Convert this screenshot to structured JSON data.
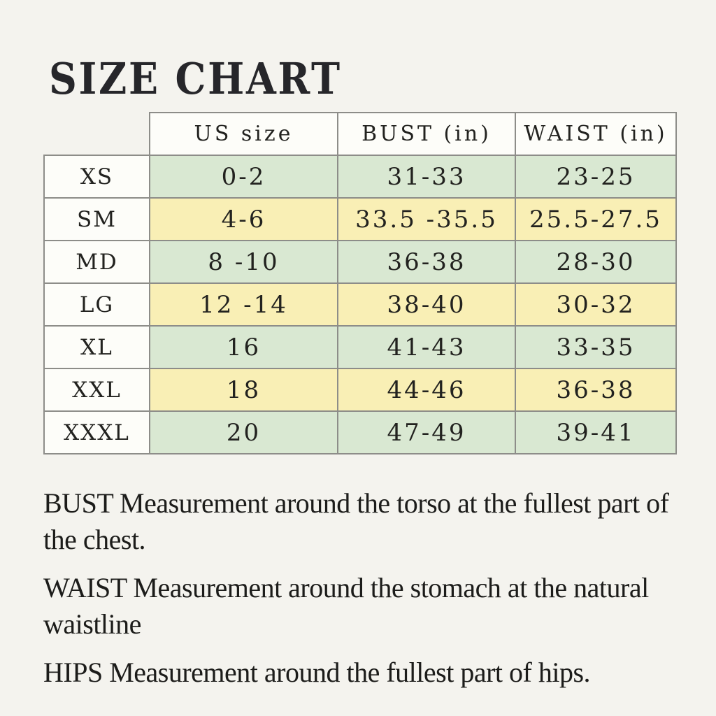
{
  "page": {
    "title": "SIZE CHART"
  },
  "chart_data": {
    "type": "table",
    "title": "SIZE CHART",
    "columns": [
      "US size",
      "BUST (in)",
      "WAIST (in)"
    ],
    "row_labels": [
      "XS",
      "SM",
      "MD",
      "LG",
      "XL",
      "XXL",
      "XXXL"
    ],
    "rows": [
      [
        "0-2",
        "31-33",
        "23-25"
      ],
      [
        "4-6",
        "33.5 -35.5",
        "25.5-27.5"
      ],
      [
        "8 -10",
        "36-38",
        "28-30"
      ],
      [
        "12 -14",
        "38-40",
        "30-32"
      ],
      [
        "16",
        "41-43",
        "33-35"
      ],
      [
        "18",
        "44-46",
        "36-38"
      ],
      [
        "20",
        "47-49",
        "39-41"
      ]
    ],
    "row_tints": [
      "green",
      "yellow",
      "green",
      "yellow",
      "green",
      "yellow",
      "green"
    ],
    "units": "inches",
    "legend_position": "none",
    "grid": true
  },
  "colors": {
    "background": "#f4f3ee",
    "green": "#d9e8d2",
    "yellow": "#f9efb5",
    "cell_white": "#fdfdf9",
    "border": "#8d8d89",
    "text": "#22221f"
  },
  "notes": [
    "BUST Measurement around the torso at the fullest part of the chest.",
    "WAIST Measurement around the stomach at the natural waistline",
    "HIPS Measurement around the fullest part of hips."
  ]
}
